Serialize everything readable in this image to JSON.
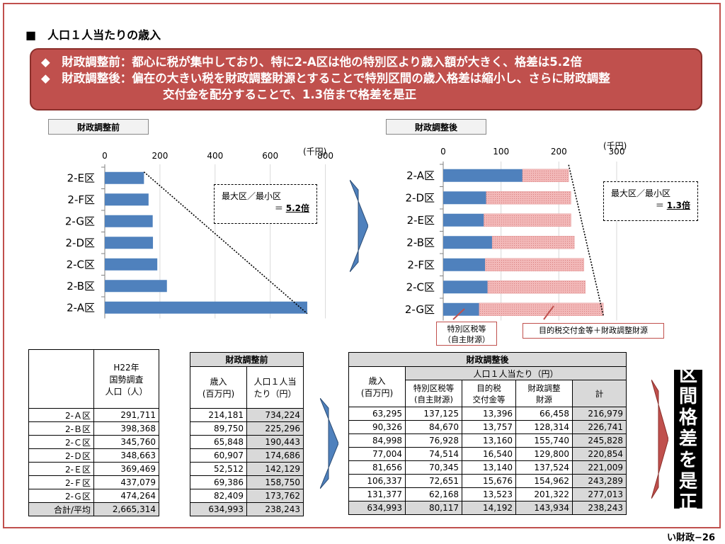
{
  "title": "■　人口１人当たりの歳入",
  "banner": {
    "line1": "◆　財政調整前：都心に税が集中しており、特に2-A区は他の特別区より歳入額が大きく、格差は5.2倍",
    "line2": "◆　財政調整後：偏在の大きい税を財政調整財源とすることで特別区間の歳入格差は縮小し、さらに財政調整",
    "line3": "交付金を配分することで、1.3倍まで格差を是正"
  },
  "tags": {
    "before": "財政調整前",
    "after": "財政調整後"
  },
  "ratio_before": {
    "label": "最大区／最小区",
    "prefix": "＝",
    "value": "5.2倍"
  },
  "ratio_after": {
    "label": "最大区／最小区",
    "prefix": "＝",
    "value": "1.3倍"
  },
  "legend_tax": {
    "line1": "特別区税等",
    "line2": "（自主財源）"
  },
  "legend_grant": "目的税交付金等＋財政調整財源",
  "side_text": [
    "区",
    "間",
    "格",
    "差",
    "を",
    "是",
    "正"
  ],
  "footer": "い財政−26",
  "colors": {
    "blue": "#4f81bd",
    "pink": "#f2b8b8",
    "red": "#c0504d"
  },
  "chart_data": [
    {
      "type": "bar",
      "orientation": "horizontal",
      "unit": "(千円)",
      "categories": [
        "2-E区",
        "2-F区",
        "2-G区",
        "2-D区",
        "2-C区",
        "2-B区",
        "2-A区"
      ],
      "values": [
        142.129,
        158.75,
        173.762,
        174.686,
        190.443,
        225.296,
        734.224
      ],
      "xlim": [
        0,
        800
      ],
      "xticks": [
        0,
        200,
        400,
        600,
        800
      ],
      "colors": [
        "#4f81bd"
      ]
    },
    {
      "type": "bar",
      "orientation": "horizontal",
      "stacked": true,
      "unit": "(千円)",
      "categories": [
        "2-A区",
        "2-D区",
        "2-E区",
        "2-B区",
        "2-F区",
        "2-C区",
        "2-G区"
      ],
      "series": [
        {
          "values": [
            137.125,
            74.514,
            70.345,
            84.67,
            72.651,
            76.928,
            62.168
          ]
        },
        {
          "values": [
            79.854,
            146.34,
            150.664,
            142.071,
            170.638,
            168.9,
            214.845
          ]
        }
      ],
      "xlim": [
        0,
        300
      ],
      "xticks": [
        0,
        100,
        200,
        300
      ],
      "colors": [
        "#4f81bd",
        "#f2b8b8"
      ]
    }
  ],
  "table_left": {
    "header": "H22年\n国勢調査\n人口（人）",
    "rows": [
      {
        "name": "2-Ａ区",
        "pop": "291,711"
      },
      {
        "name": "2-Ｂ区",
        "pop": "398,368"
      },
      {
        "name": "2-Ｃ区",
        "pop": "345,760"
      },
      {
        "name": "2-Ｄ区",
        "pop": "348,663"
      },
      {
        "name": "2-Ｅ区",
        "pop": "369,469"
      },
      {
        "name": "2-Ｆ区",
        "pop": "437,079"
      },
      {
        "name": "2-Ｇ区",
        "pop": "474,264"
      },
      {
        "name": "合計/平均",
        "pop": "2,665,314"
      }
    ]
  },
  "table_mid": {
    "header": "財政調整前",
    "col1": "歳入\n(百万円)",
    "col2": "人口１人当\nたり（円）",
    "rows": [
      [
        "214,181",
        "734,224"
      ],
      [
        "89,750",
        "225,296"
      ],
      [
        "65,848",
        "190,443"
      ],
      [
        "60,907",
        "174,686"
      ],
      [
        "52,512",
        "142,129"
      ],
      [
        "69,386",
        "158,750"
      ],
      [
        "82,409",
        "173,762"
      ],
      [
        "634,993",
        "238,243"
      ]
    ]
  },
  "table_right": {
    "header": "財政調整後",
    "col_rev": "歳入\n(百万円)",
    "per_capita": "人口１人当たり（円）",
    "cols": [
      "特別区税等\n(自主財源)",
      "目的税\n交付金等",
      "財政調整\n財源",
      "計"
    ],
    "rows": [
      [
        "63,295",
        "137,125",
        "13,396",
        "66,458",
        "216,979"
      ],
      [
        "90,326",
        "84,670",
        "13,757",
        "128,314",
        "226,741"
      ],
      [
        "84,998",
        "76,928",
        "13,160",
        "155,740",
        "245,828"
      ],
      [
        "77,004",
        "74,514",
        "16,540",
        "129,800",
        "220,854"
      ],
      [
        "81,656",
        "70,345",
        "13,140",
        "137,524",
        "221,009"
      ],
      [
        "106,337",
        "72,651",
        "15,676",
        "154,962",
        "243,289"
      ],
      [
        "131,377",
        "62,168",
        "13,523",
        "201,322",
        "277,013"
      ],
      [
        "634,993",
        "80,117",
        "14,192",
        "143,934",
        "238,243"
      ]
    ]
  }
}
